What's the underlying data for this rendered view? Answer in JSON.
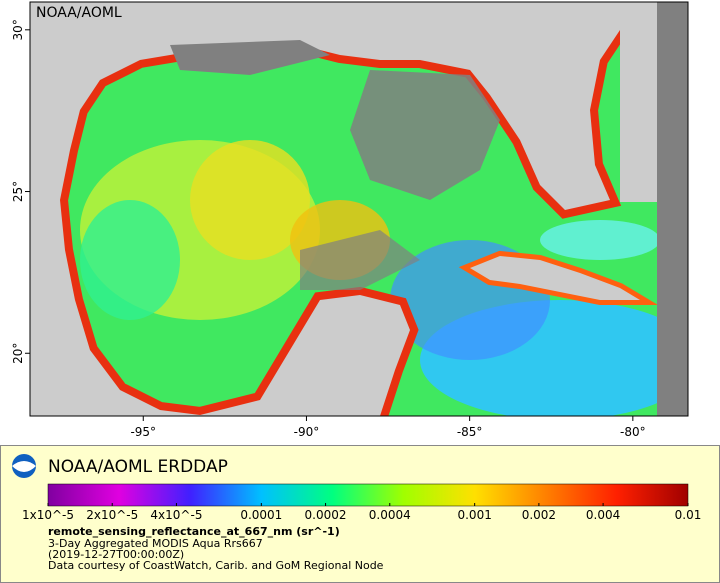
{
  "map": {
    "corner_label": "NOAA/AOML",
    "xlim": [
      -98.47,
      -78.31
    ],
    "ylim": [
      18.06,
      30.86
    ],
    "xticks": [
      {
        "value": -95,
        "label": "-95°"
      },
      {
        "value": -90,
        "label": "-90°"
      },
      {
        "value": -85,
        "label": "-85°"
      },
      {
        "value": -80,
        "label": "-80°"
      }
    ],
    "yticks": [
      {
        "value": 20,
        "label": "20°"
      },
      {
        "value": 25,
        "label": "25°"
      },
      {
        "value": 30,
        "label": "30°"
      }
    ]
  },
  "legend": {
    "title": "NOAA/AOML ERDDAP",
    "colorbar": {
      "scale": "log",
      "lim": [
        1e-05,
        0.01
      ],
      "colors": [
        "#8000a0",
        "#e000e0",
        "#4020ff",
        "#00c0ff",
        "#00ff80",
        "#a0ff00",
        "#ffe000",
        "#ff8000",
        "#ff2000",
        "#a00000"
      ],
      "ticks": [
        {
          "value": 1e-05,
          "label": "1x10^-5"
        },
        {
          "value": 2e-05,
          "label": "2x10^-5"
        },
        {
          "value": 4e-05,
          "label": "4x10^-5"
        },
        0.0001,
        0.0002,
        0.0004,
        0.001,
        0.002,
        0.004,
        0.01
      ]
    },
    "variable": "remote_sensing_reflectance_at_667_nm (sr^-1)",
    "lines": [
      "3-Day Aggregated MODIS Aqua Rrs667",
      "(2019-12-27T00:00:00Z)",
      "Data courtesy of CoastWatch, Carib. and GoM Regional Node"
    ]
  }
}
